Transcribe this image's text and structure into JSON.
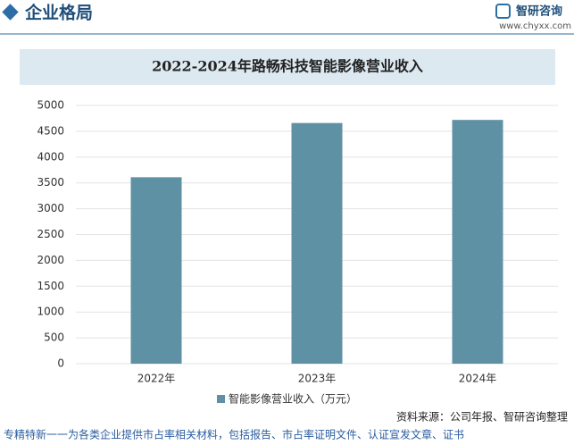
{
  "header": {
    "title": "企业格局",
    "brand": "智研咨询",
    "website": "www.chyxx.com"
  },
  "chart_data": {
    "type": "bar",
    "title": "2022-2024年路畅科技智能影像营业收入",
    "categories": [
      "2022年",
      "2023年",
      "2024年"
    ],
    "series": [
      {
        "name": "智能影像营业收入（万元）",
        "color": "#5f91a5",
        "values": [
          3610,
          4660,
          4720
        ]
      }
    ],
    "ylim": [
      0,
      5000
    ],
    "yticks": [
      0,
      500,
      1000,
      1500,
      2000,
      2500,
      3000,
      3500,
      4000,
      4500,
      5000
    ],
    "grid": true
  },
  "source": "资料来源：公司年报、智研咨询整理",
  "footer": "专精特新一一为各类企业提供市占率相关材料，包括报告、市占率证明文件、认证宣发文章、证书"
}
